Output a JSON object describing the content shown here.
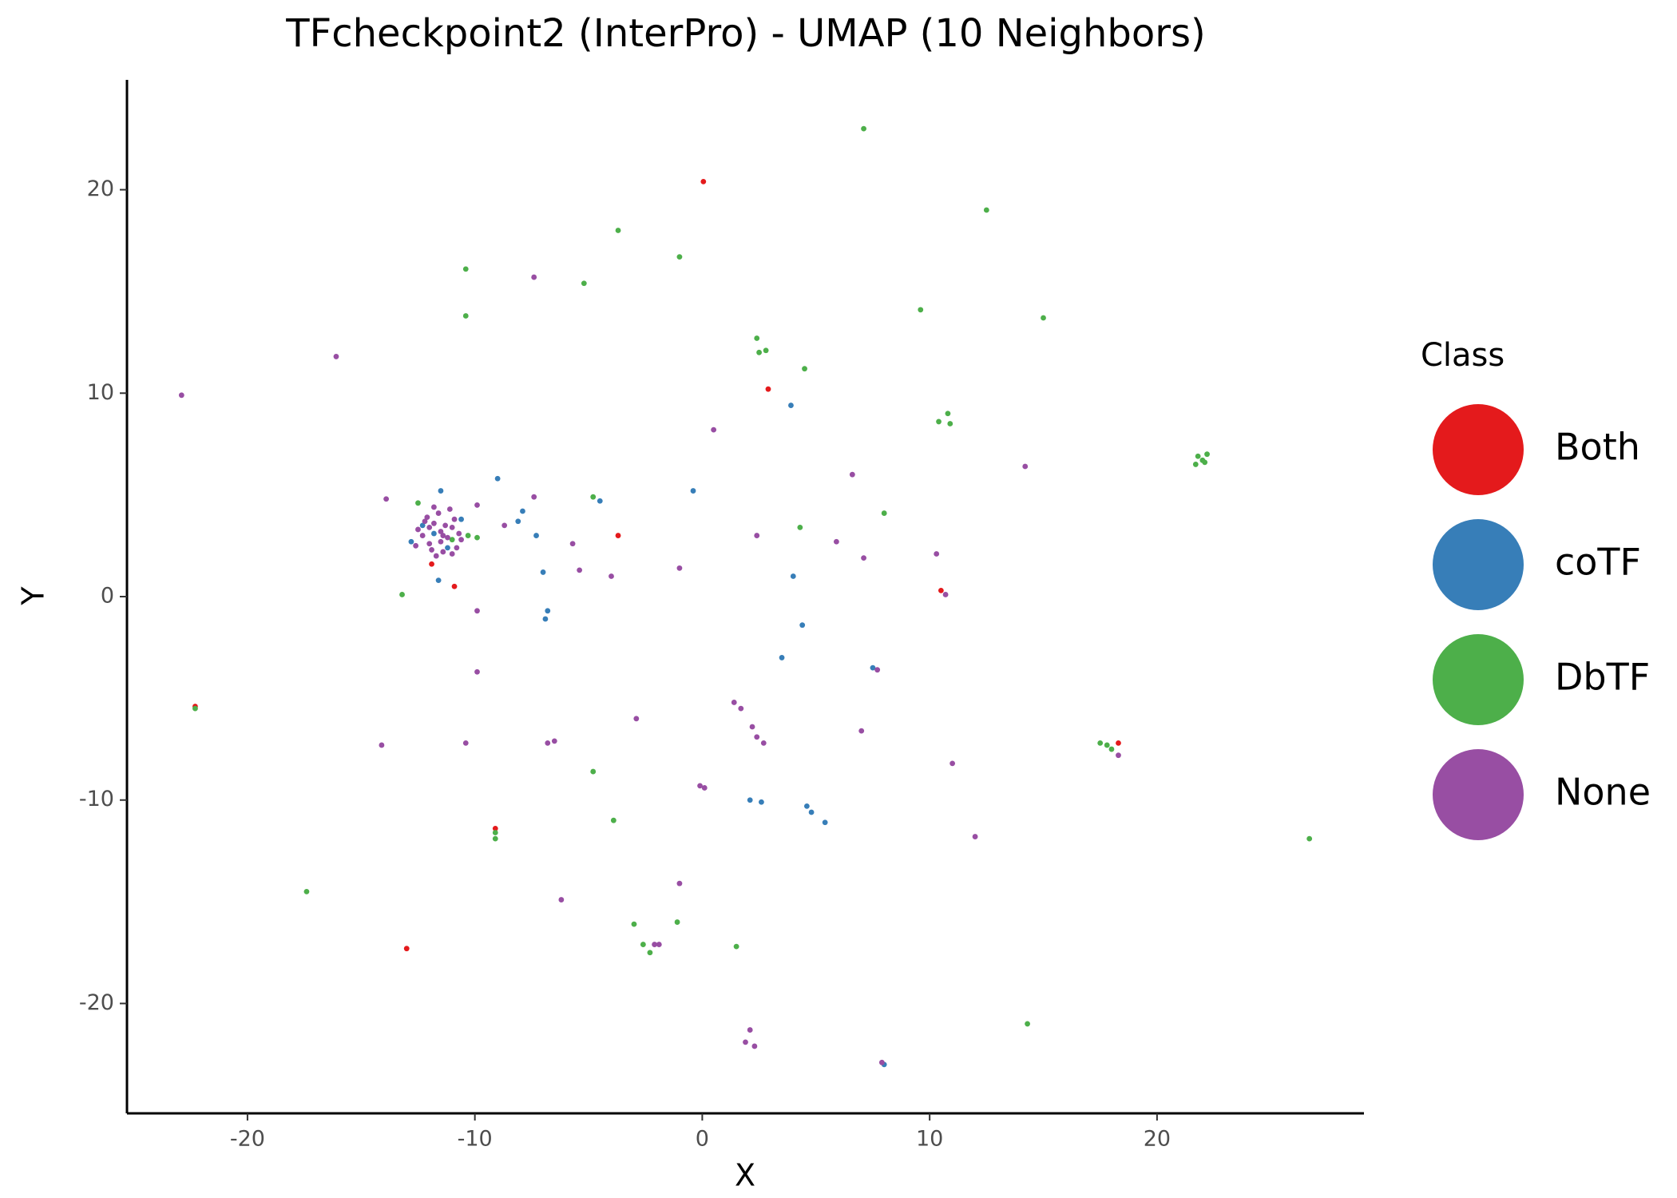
{
  "chart_data": {
    "type": "scatter",
    "title": "TFcheckpoint2 (InterPro) - UMAP (10 Neighbors)",
    "x_label": "X",
    "y_label": "Y",
    "xlim": [
      -25.3,
      29.1
    ],
    "ylim": [
      -25.4,
      25.4
    ],
    "xticks": [
      -20,
      -10,
      0,
      10,
      20
    ],
    "yticks": [
      -20,
      -10,
      0,
      10,
      20
    ],
    "grid": false,
    "legend_title": "Class",
    "legend_position": "right",
    "series": [
      {
        "name": "Both",
        "color": "#e41a1c",
        "x": [
          0.05,
          2.9,
          -3.7,
          -11.9,
          -10.9,
          10.5,
          18.3,
          -9.1,
          -13.0,
          -22.3
        ],
        "y": [
          20.4,
          10.2,
          3.0,
          1.6,
          0.5,
          0.3,
          -7.2,
          -11.4,
          -17.3,
          -5.4
        ]
      },
      {
        "name": "coTF",
        "color": "#377eb8",
        "x": [
          3.9,
          -9.0,
          -0.4,
          -4.5,
          -7.9,
          -8.1,
          -7.3,
          -7.0,
          4.0,
          -6.8,
          -6.9,
          4.4,
          3.5,
          7.5,
          2.1,
          2.6,
          4.6,
          4.8,
          5.4,
          8.0,
          -11.5,
          -11.6,
          -12.3,
          -11.2,
          -10.6,
          -12.8,
          -11.8
        ],
        "y": [
          9.4,
          5.8,
          5.2,
          4.7,
          4.2,
          3.7,
          3.0,
          1.2,
          1.0,
          -0.7,
          -1.1,
          -1.4,
          -3.0,
          -3.5,
          -10.0,
          -10.1,
          -10.3,
          -10.6,
          -11.1,
          -23.0,
          5.2,
          0.8,
          3.5,
          2.4,
          3.8,
          2.7,
          3.1
        ]
      },
      {
        "name": "DbTF",
        "color": "#4daf4a",
        "x": [
          7.1,
          12.5,
          -3.7,
          -1.0,
          -10.4,
          -5.2,
          -10.4,
          9.6,
          15.0,
          2.4,
          2.8,
          2.5,
          4.5,
          10.4,
          10.8,
          10.9,
          21.8,
          22.1,
          21.7,
          22.2,
          22.0,
          8.0,
          4.3,
          -4.8,
          -13.2,
          -22.3,
          17.8,
          18.0,
          17.5,
          -4.8,
          -3.9,
          -9.1,
          -9.1,
          26.7,
          -17.4,
          -3.0,
          -1.1,
          1.5,
          -2.3,
          -2.6,
          14.3,
          -12.5,
          -10.3,
          -9.9,
          -11.0
        ],
        "y": [
          23.0,
          19.0,
          18.0,
          16.7,
          16.1,
          15.4,
          13.8,
          14.1,
          13.7,
          12.7,
          12.1,
          12.0,
          11.2,
          8.6,
          9.0,
          8.5,
          6.9,
          6.6,
          6.5,
          7.0,
          6.7,
          4.1,
          3.4,
          4.9,
          0.1,
          -5.5,
          -7.3,
          -7.5,
          -7.2,
          -8.6,
          -11.0,
          -11.6,
          -11.9,
          -11.9,
          -14.5,
          -16.1,
          -16.0,
          -17.2,
          -17.5,
          -17.1,
          -21.0,
          4.6,
          3.0,
          2.9,
          2.8
        ]
      },
      {
        "name": "None",
        "color": "#984ea3",
        "x": [
          -7.4,
          -16.1,
          -22.9,
          0.5,
          6.6,
          14.2,
          -13.9,
          -7.4,
          -9.9,
          -8.7,
          -5.7,
          2.4,
          5.9,
          7.1,
          10.3,
          -5.4,
          -4.0,
          -1.0,
          10.7,
          -9.9,
          -9.9,
          7.7,
          -2.9,
          1.4,
          1.7,
          2.2,
          2.4,
          2.7,
          7.0,
          -14.1,
          -10.4,
          -6.8,
          -6.5,
          18.3,
          11.0,
          -0.1,
          0.1,
          12.0,
          -1.0,
          -6.2,
          -2.1,
          -1.9,
          2.1,
          1.9,
          2.3,
          7.9,
          -11.5,
          -11.8,
          -11.2,
          -12.0,
          -11.0,
          -11.6,
          -12.3,
          -10.8,
          -11.4,
          -12.1,
          -11.7,
          -10.9,
          -11.3,
          -12.5,
          -10.6,
          -11.9,
          -11.1,
          -12.2,
          -11.5,
          -10.7,
          -12.6,
          -11.8,
          -11.0,
          -11.4,
          -12.0
        ],
        "y": [
          15.7,
          11.8,
          9.9,
          8.2,
          6.0,
          6.4,
          4.8,
          4.9,
          4.5,
          3.5,
          2.6,
          3.0,
          2.7,
          1.9,
          2.1,
          1.3,
          1.0,
          1.4,
          0.1,
          -0.7,
          -3.7,
          -3.6,
          -6.0,
          -5.2,
          -5.5,
          -6.4,
          -6.9,
          -7.2,
          -6.6,
          -7.3,
          -7.2,
          -7.2,
          -7.1,
          -7.8,
          -8.2,
          -9.3,
          -9.4,
          -11.8,
          -14.1,
          -14.9,
          -17.1,
          -17.1,
          -21.3,
          -21.9,
          -22.1,
          -22.9,
          3.2,
          3.6,
          2.9,
          2.6,
          3.4,
          4.1,
          3.0,
          2.4,
          2.2,
          3.9,
          2.0,
          3.8,
          3.5,
          3.3,
          2.8,
          2.3,
          4.3,
          3.7,
          2.7,
          3.1,
          2.5,
          4.4,
          2.1,
          3.0,
          3.4
        ]
      }
    ]
  }
}
